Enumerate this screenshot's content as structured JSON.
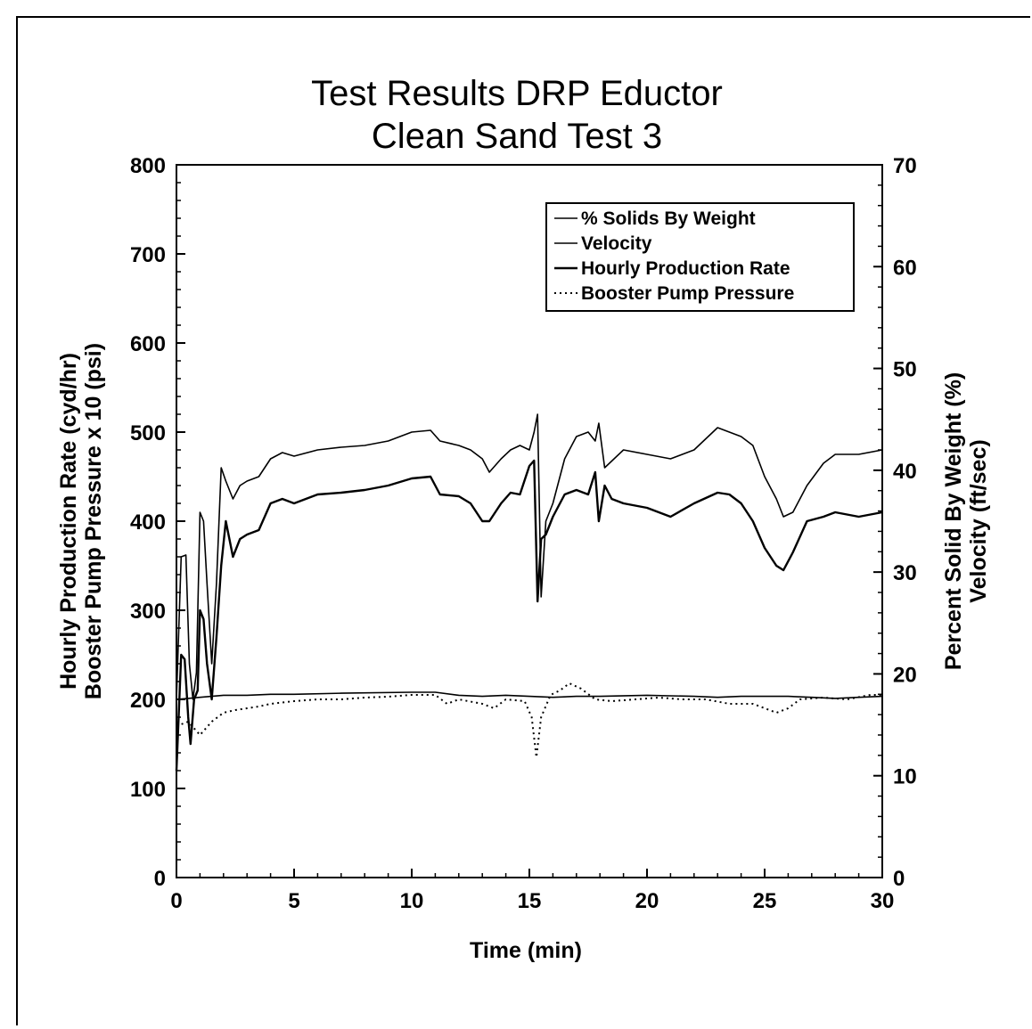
{
  "chart_data": {
    "type": "line",
    "title": [
      "Test Results DRP Eductor",
      "Clean Sand Test 3"
    ],
    "xlabel": "Time (min)",
    "ylabel_left": [
      "Hourly Production Rate (cyd/hr)",
      "Booster Pump Pressure x 10 (psi)"
    ],
    "ylabel_right": [
      "Percent Solid By Weight (%)",
      "Velocity (ft/sec)"
    ],
    "xlim": [
      0,
      30
    ],
    "ylim_left": [
      0,
      800
    ],
    "ylim_right": [
      0,
      70
    ],
    "x_ticks": [
      "0",
      "5",
      "10",
      "15",
      "20",
      "25",
      "30"
    ],
    "y_left_ticks": [
      "0",
      "100",
      "200",
      "300",
      "400",
      "500",
      "600",
      "700",
      "800"
    ],
    "y_right_ticks": [
      "0",
      "10",
      "20",
      "30",
      "40",
      "50",
      "60",
      "70"
    ],
    "legend_position": "top-right",
    "grid": false,
    "series": [
      {
        "name": "% Solids By Weight",
        "axis": "left",
        "style": "solid-thin",
        "x": [
          0,
          0.2,
          0.4,
          0.55,
          0.7,
          0.85,
          1.0,
          1.15,
          1.3,
          1.5,
          1.7,
          1.9,
          2.1,
          2.4,
          2.7,
          3.0,
          3.5,
          4.0,
          4.5,
          5.0,
          6.0,
          7.0,
          8.0,
          9.0,
          10.0,
          10.8,
          11.2,
          12.0,
          12.5,
          13.0,
          13.3,
          13.8,
          14.2,
          14.6,
          15.0,
          15.2,
          15.35,
          15.5,
          15.7,
          16.0,
          16.5,
          17.0,
          17.5,
          17.8,
          17.95,
          18.2,
          19.0,
          20.0,
          21.0,
          22.0,
          23.0,
          23.5,
          24.0,
          24.5,
          25.0,
          25.5,
          25.8,
          26.2,
          26.8,
          27.5,
          28.0,
          29.0,
          30.0
        ],
        "values": [
          200,
          360,
          362,
          240,
          200,
          230,
          410,
          400,
          330,
          240,
          330,
          460,
          445,
          425,
          440,
          445,
          450,
          470,
          477,
          473,
          480,
          483,
          485,
          490,
          500,
          502,
          490,
          485,
          480,
          470,
          455,
          470,
          480,
          485,
          480,
          500,
          520,
          315,
          400,
          420,
          470,
          495,
          500,
          490,
          510,
          460,
          480,
          475,
          470,
          480,
          505,
          500,
          495,
          485,
          450,
          425,
          405,
          410,
          440,
          465,
          475,
          475,
          480
        ]
      },
      {
        "name": "Velocity",
        "axis": "right",
        "style": "solid-thin",
        "x": [
          0,
          0.5,
          1,
          2,
          3,
          4,
          5,
          7,
          10,
          11,
          12,
          13,
          14,
          15,
          16,
          17,
          18,
          20,
          22,
          23,
          24,
          25,
          26,
          27,
          28,
          29,
          30
        ],
        "values": [
          17.5,
          17.6,
          17.7,
          17.9,
          17.9,
          18.0,
          18.0,
          18.1,
          18.2,
          18.2,
          17.9,
          17.8,
          17.9,
          17.8,
          17.7,
          17.8,
          17.8,
          17.9,
          17.8,
          17.7,
          17.8,
          17.8,
          17.8,
          17.7,
          17.6,
          17.7,
          17.8
        ]
      },
      {
        "name": "Hourly Production Rate",
        "axis": "left",
        "style": "solid-thick",
        "x": [
          0,
          0.2,
          0.35,
          0.5,
          0.6,
          0.75,
          0.9,
          1.0,
          1.15,
          1.3,
          1.5,
          1.7,
          1.9,
          2.1,
          2.4,
          2.7,
          3.0,
          3.5,
          4.0,
          4.5,
          5.0,
          6.0,
          7.0,
          8.0,
          9.0,
          10.0,
          10.8,
          11.2,
          12.0,
          12.5,
          13.0,
          13.3,
          13.8,
          14.2,
          14.6,
          15.0,
          15.2,
          15.35,
          15.5,
          15.7,
          16.0,
          16.5,
          17.0,
          17.5,
          17.8,
          17.95,
          18.2,
          18.5,
          19.0,
          20.0,
          21.0,
          22.0,
          23.0,
          23.5,
          24.0,
          24.5,
          25.0,
          25.5,
          25.8,
          26.2,
          26.8,
          27.5,
          28.0,
          29.0,
          30.0
        ],
        "values": [
          120,
          250,
          245,
          180,
          150,
          200,
          210,
          300,
          290,
          240,
          200,
          270,
          350,
          400,
          360,
          380,
          385,
          390,
          420,
          425,
          420,
          430,
          432,
          435,
          440,
          448,
          450,
          430,
          428,
          420,
          400,
          400,
          420,
          432,
          430,
          462,
          468,
          310,
          380,
          385,
          405,
          430,
          435,
          430,
          455,
          400,
          440,
          425,
          420,
          415,
          405,
          420,
          432,
          430,
          420,
          400,
          370,
          350,
          345,
          365,
          400,
          405,
          410,
          405,
          410
        ]
      },
      {
        "name": "Booster Pump Pressure",
        "axis": "left",
        "style": "dotted",
        "x": [
          0,
          0.5,
          1,
          1.5,
          2,
          2.5,
          3,
          3.5,
          4,
          5,
          6,
          7,
          8,
          9,
          10,
          11,
          11.5,
          12,
          13,
          13.5,
          14,
          14.8,
          15.1,
          15.3,
          15.5,
          15.9,
          16.3,
          16.7,
          17.2,
          17.8,
          18.5,
          19.5,
          20.5,
          21.5,
          22.5,
          23.5,
          24.5,
          25.0,
          25.5,
          26.0,
          26.5,
          27.5,
          28.5,
          29.5,
          30.0
        ],
        "values": [
          170,
          175,
          160,
          175,
          185,
          188,
          190,
          192,
          195,
          198,
          200,
          200,
          202,
          203,
          205,
          205,
          195,
          200,
          195,
          190,
          200,
          198,
          180,
          135,
          180,
          205,
          210,
          218,
          212,
          200,
          198,
          200,
          202,
          200,
          200,
          195,
          195,
          190,
          185,
          190,
          200,
          202,
          200,
          205,
          205
        ]
      }
    ]
  }
}
